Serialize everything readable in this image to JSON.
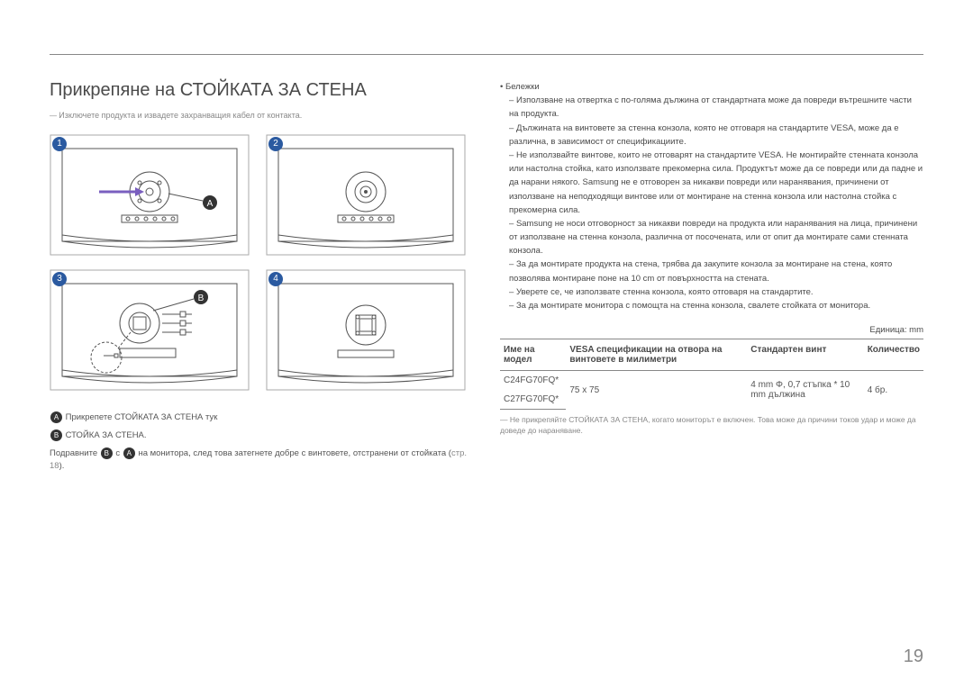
{
  "title": "Прикрепяне на СТОЙКАТА ЗА СТЕНА",
  "pre_note": "Изключете продукта и извадете захранващия кабел от контакта.",
  "steps": [
    "1",
    "2",
    "3",
    "4"
  ],
  "badge_A": "A",
  "badge_B": "B",
  "legend_a": "Прикрепете СТОЙКАТА ЗА СТЕНА тук",
  "legend_b": "СТОЙКА ЗА СТЕНА.",
  "legend_align_1": "Подравните",
  "legend_align_2": "с",
  "legend_align_3": "на монитора, след това затегнете добре с винтовете, отстранени от стойката",
  "legend_align_link": "стр. 18",
  "legend_align_4": ").",
  "bullets_header": "Бележки",
  "bullets": [
    "Използване на отвертка с по-голяма дължина от стандартната може да повреди вътрешните части на продукта.",
    "Дължината на винтовете за стенна конзола, която не отговаря на стандартите VESA, може да е различна, в зависимост от спецификациите.",
    "Не използвайте винтове, които не отговарят на стандартите VESA. Не монтирайте стенната конзола или настолна стойка, като използвате прекомерна сила. Продуктът може да се повреди или да падне и да нарани някого. Samsung не е отговорен за никакви повреди или наранявания, причинени от използване на неподходящи винтове или от монтиране на стенна конзола или настолна стойка с прекомерна сила.",
    "Samsung не носи отговорност за никакви повреди на продукта или наранявания на лица, причинени от използване на стенна конзола, различна от посочената, или от опит да монтирате сами стенната конзола.",
    "За да монтирате продукта на стена, трябва да закупите конзола за монтиране на стена, която позволява монтиране поне на 10 cm от повърхността на стената.",
    "Уверете се, че използвате стенна конзола, която отговаря на стандартите.",
    "За да монтирате монитора с помощта на стенна конзола, свалете стойката от монитора."
  ],
  "unit": "Единица: mm",
  "table": {
    "headers": [
      "Име на модел",
      "VESA спецификации на отвора на винтовете в милиметри",
      "Стандартен винт",
      "Количество"
    ],
    "models": [
      "C24FG70FQ*",
      "C27FG70FQ*"
    ],
    "vesa": "75 x 75",
    "screw": "4 mm Φ, 0,7 стъпка * 10 mm дължина",
    "qty": "4 бр."
  },
  "footnote": "Не прикрепяйте СТОЙКАТА ЗА СТЕНА, когато мониторът е включен. Това може да причини токов удар и може да доведе до нараняване.",
  "page": "19",
  "colors": {
    "accent": "#2b5aa0",
    "line": "#888888",
    "text": "#4a4a4a",
    "arrow": "#7a5fbf"
  }
}
